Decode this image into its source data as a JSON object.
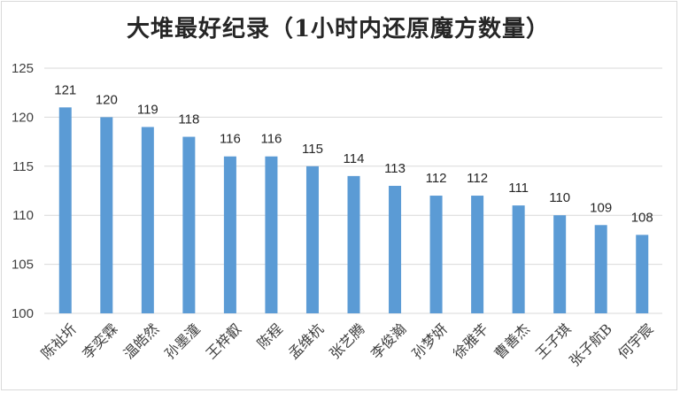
{
  "chart_data": {
    "type": "bar",
    "title": "大堆最好纪录（1小时内还原魔方数量）",
    "categories": [
      "陈祉圻",
      "李奕霖",
      "温皓然",
      "孙墨潼",
      "王梓叡",
      "陈程",
      "孟维杭",
      "张艺腾",
      "李俊瀚",
      "孙梦妍",
      "徐雅芊",
      "曹善杰",
      "王子琪",
      "张子航B",
      "何宇宸"
    ],
    "values": [
      121,
      120,
      119,
      118,
      116,
      116,
      115,
      114,
      113,
      112,
      112,
      111,
      110,
      109,
      108
    ],
    "yticks": [
      "100",
      "105",
      "110",
      "115",
      "120",
      "125"
    ],
    "ylim": [
      100,
      125
    ],
    "xlabel": "",
    "ylabel": "",
    "grid": true,
    "bar_color": "#5b9bd5",
    "grid_color": "#d9d9d9"
  }
}
